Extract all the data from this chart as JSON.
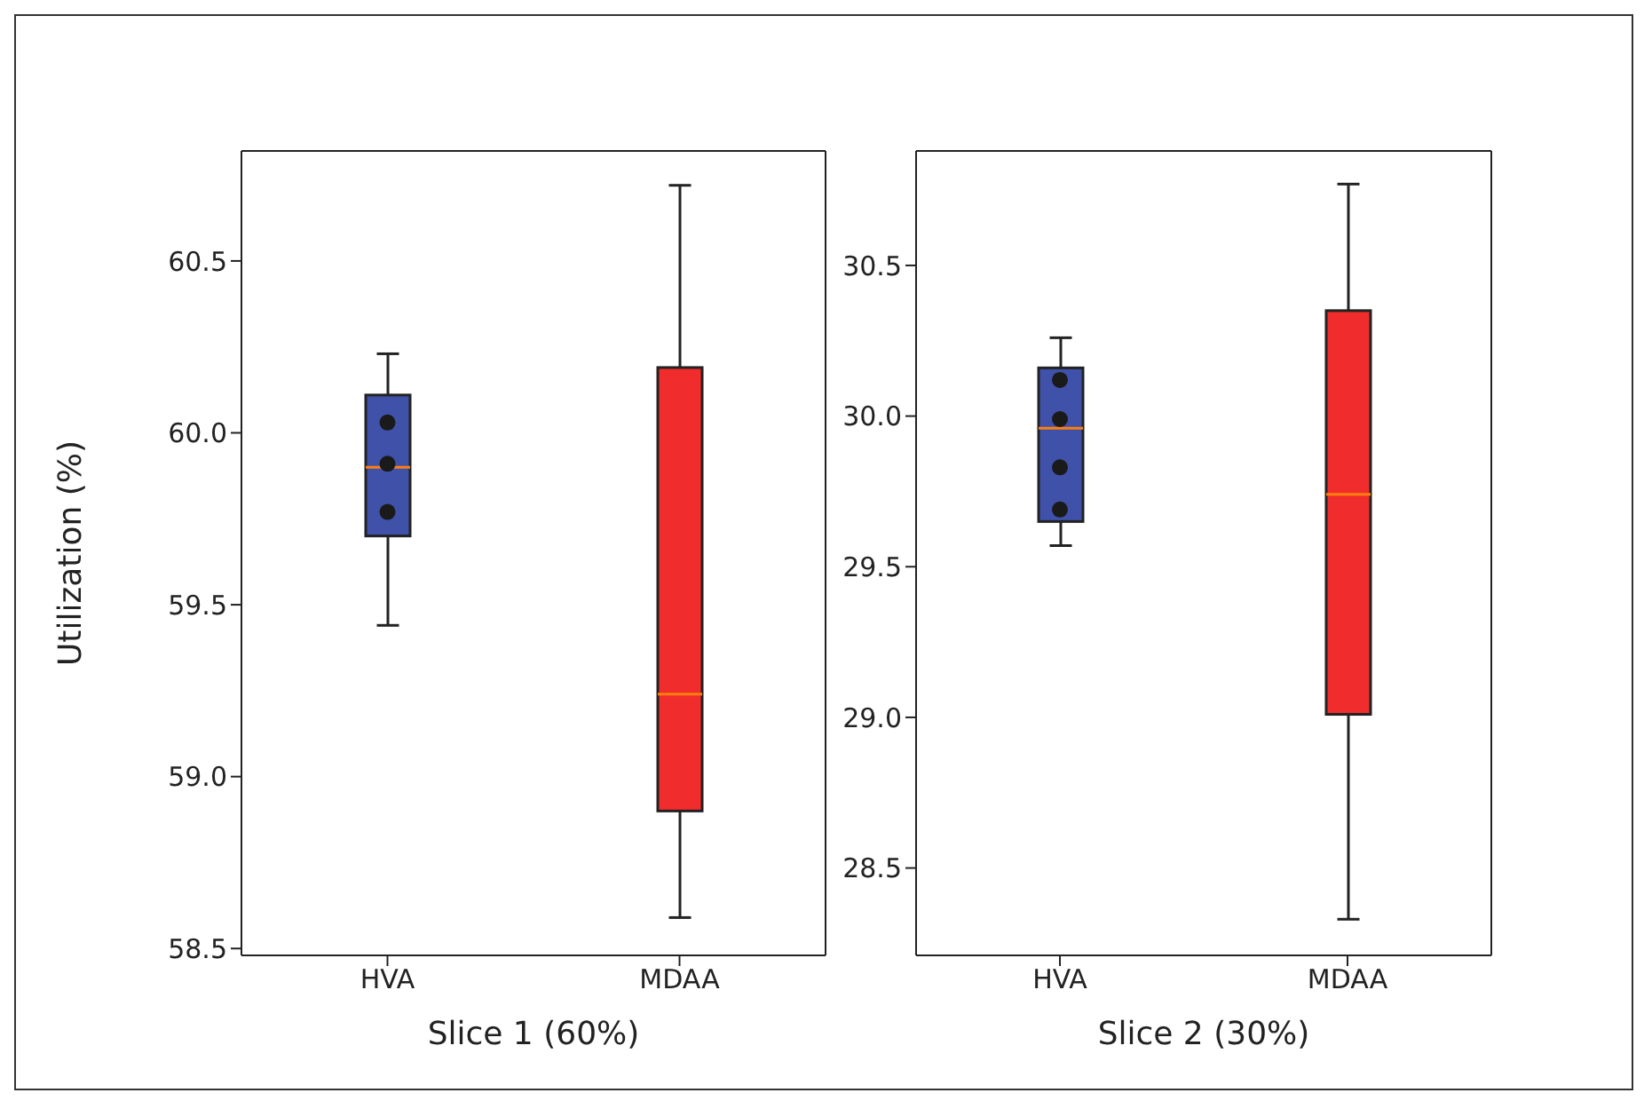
{
  "chart_data": [
    {
      "type": "box",
      "xlabel": "Slice 1 (60%)",
      "ylabel": "Utilization (%)",
      "categories": [
        "HVA",
        "MDAA"
      ],
      "colors": [
        "#3f51a8",
        "#f02c2c"
      ],
      "boxes": [
        {
          "low": 59.44,
          "q1": 59.7,
          "median": 59.9,
          "q3": 60.11,
          "high": 60.23
        },
        {
          "low": 58.59,
          "q1": 58.9,
          "median": 59.24,
          "q3": 60.19,
          "high": 60.72
        }
      ],
      "ylim": [
        58.48,
        60.82
      ],
      "yticks": [
        {
          "value": 58.5,
          "label": "58.5"
        },
        {
          "value": 59,
          "label": "59.0"
        },
        {
          "value": 59.5,
          "label": "59.5"
        },
        {
          "value": 60,
          "label": "60.0"
        },
        {
          "value": 60.5,
          "label": "60.5"
        }
      ],
      "grid": false,
      "legend": false,
      "series": [
        {
          "type": "scatter",
          "color": "#1a1a1a",
          "x": [
            "HVA",
            "HVA",
            "HVA"
          ],
          "values": [
            60.03,
            59.91,
            59.77
          ]
        }
      ]
    },
    {
      "type": "box",
      "xlabel": "Slice 2 (30%)",
      "categories": [
        "HVA",
        "MDAA"
      ],
      "colors": [
        "#3f51a8",
        "#f02c2c"
      ],
      "boxes": [
        {
          "low": 29.57,
          "q1": 29.65,
          "median": 29.96,
          "q3": 30.16,
          "high": 30.26
        },
        {
          "low": 28.33,
          "q1": 29.01,
          "median": 29.74,
          "q3": 30.35,
          "high": 30.77
        }
      ],
      "ylim": [
        28.21,
        30.88
      ],
      "yticks": [
        {
          "value": 28.5,
          "label": "28.5"
        },
        {
          "value": 29,
          "label": "29.0"
        },
        {
          "value": 29.5,
          "label": "29.5"
        },
        {
          "value": 30,
          "label": "30.0"
        },
        {
          "value": 30.5,
          "label": "30.5"
        }
      ],
      "grid": false,
      "legend": false,
      "series": [
        {
          "type": "scatter",
          "color": "#1a1a1a",
          "x": [
            "HVA",
            "HVA",
            "HVA",
            "HVA"
          ],
          "values": [
            30.12,
            29.99,
            29.83,
            29.69
          ]
        }
      ]
    }
  ]
}
